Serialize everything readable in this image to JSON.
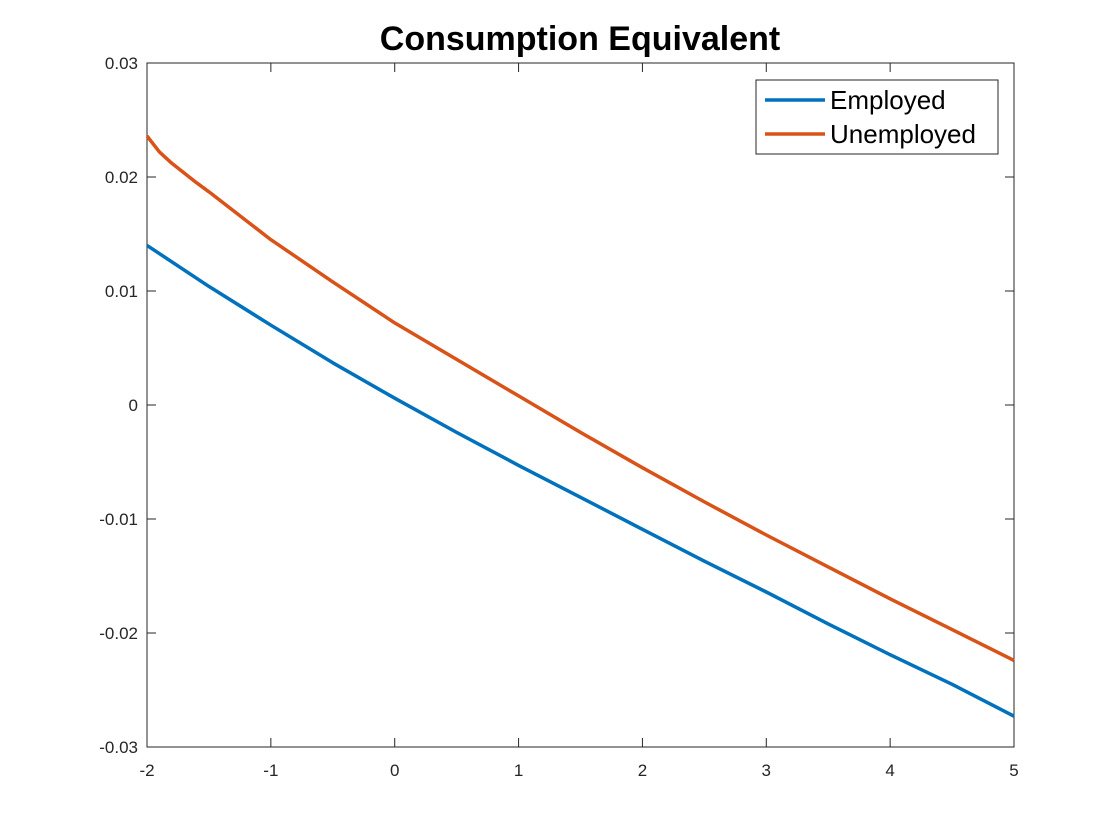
{
  "chart_data": {
    "type": "line",
    "title": "Consumption Equivalent",
    "xlabel": "",
    "ylabel": "",
    "xlim": [
      -2,
      5
    ],
    "ylim": [
      -0.03,
      0.03
    ],
    "xticks": [
      -2,
      -1,
      0,
      1,
      2,
      3,
      4,
      5
    ],
    "xtick_labels": [
      "-2",
      "-1",
      "0",
      "1",
      "2",
      "3",
      "4",
      "5"
    ],
    "yticks": [
      -0.03,
      -0.02,
      -0.01,
      0,
      0.01,
      0.02,
      0.03
    ],
    "ytick_labels": [
      "-0.03",
      "-0.02",
      "-0.01",
      "0",
      "0.01",
      "0.02",
      "0.03"
    ],
    "grid": false,
    "legend_position": "top-right",
    "series": [
      {
        "name": "Employed",
        "color": "#0072BD",
        "x": [
          -2,
          -1.5,
          -1,
          -0.5,
          0,
          0.5,
          1,
          1.5,
          2,
          2.5,
          3,
          3.5,
          4,
          4.5,
          5
        ],
        "y": [
          0.014,
          0.0104,
          0.007,
          0.0037,
          0.0006,
          -0.0024,
          -0.0053,
          -0.0081,
          -0.0109,
          -0.0137,
          -0.0164,
          -0.0192,
          -0.0219,
          -0.0245,
          -0.0273
        ]
      },
      {
        "name": "Unemployed",
        "color": "#D95319",
        "x": [
          -2,
          -1.9,
          -1.8,
          -1.6,
          -1.5,
          -1,
          -0.5,
          0,
          0.5,
          1,
          1.5,
          2,
          2.5,
          3,
          3.5,
          4,
          4.5,
          5
        ],
        "y": [
          0.0236,
          0.0222,
          0.0212,
          0.0195,
          0.0187,
          0.0145,
          0.0108,
          0.0072,
          0.004,
          0.0008,
          -0.0024,
          -0.0055,
          -0.0085,
          -0.0114,
          -0.0142,
          -0.017,
          -0.0197,
          -0.0224
        ]
      }
    ]
  }
}
